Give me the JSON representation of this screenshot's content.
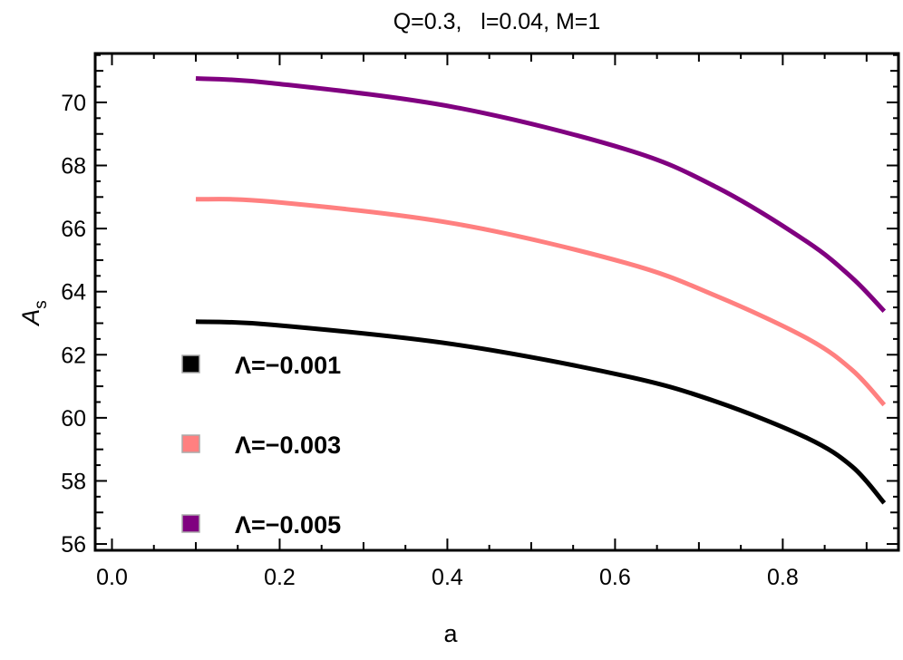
{
  "chart_data": {
    "type": "line",
    "title": "Q=0.3,   l=0.04, M=1",
    "xlabel": "a",
    "ylabel": "A",
    "ylabel_subscript": "s",
    "xlim": [
      -0.02,
      0.938
    ],
    "ylim": [
      55.8,
      71.55
    ],
    "xticks": [
      "0.0",
      "0.2",
      "0.4",
      "0.6",
      "0.8"
    ],
    "yticks": [
      "56",
      "58",
      "60",
      "62",
      "64",
      "66",
      "68",
      "70"
    ],
    "grid": false,
    "legend_position": "bottom-left",
    "series": [
      {
        "name": "Λ=−0.001",
        "color": "#000000",
        "x": [
          0.1,
          0.191,
          0.408,
          0.613,
          0.721,
          0.829,
          0.883,
          0.921
        ],
        "y": [
          63.05,
          62.95,
          62.33,
          61.32,
          60.51,
          59.36,
          58.45,
          57.3
        ]
      },
      {
        "name": "Λ=−0.003",
        "color": "#ff8080",
        "x": [
          0.1,
          0.191,
          0.408,
          0.613,
          0.721,
          0.829,
          0.883,
          0.921
        ],
        "y": [
          66.93,
          66.85,
          66.16,
          64.91,
          63.86,
          62.52,
          61.51,
          60.41
        ]
      },
      {
        "name": "Λ=−0.005",
        "color": "#800080",
        "x": [
          0.1,
          0.191,
          0.408,
          0.613,
          0.721,
          0.829,
          0.883,
          0.921
        ],
        "y": [
          70.76,
          70.61,
          69.85,
          68.51,
          67.31,
          65.58,
          64.43,
          63.38
        ]
      }
    ]
  }
}
